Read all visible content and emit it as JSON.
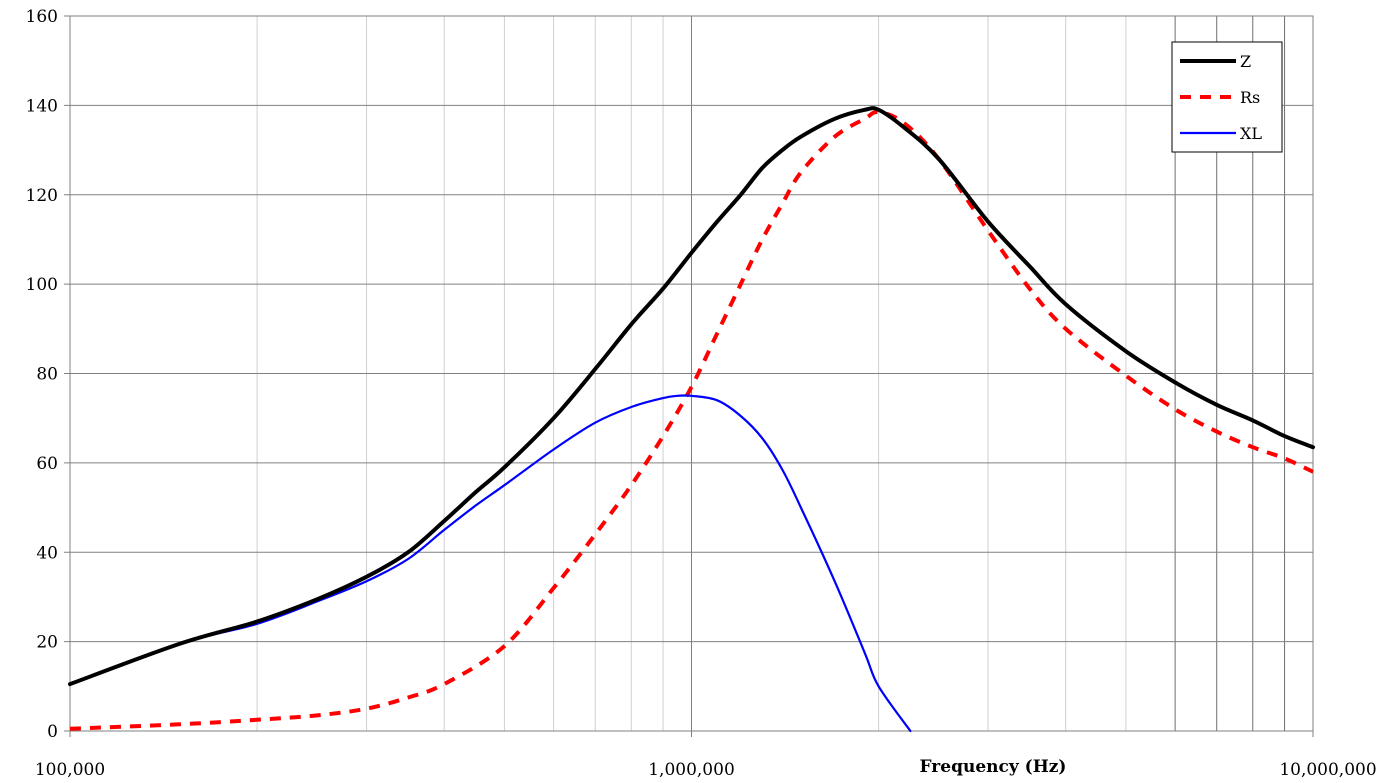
{
  "chart_data": {
    "type": "line",
    "title": "",
    "xlabel": "Frequency (Hz)",
    "ylabel": "",
    "x_scale": "log",
    "xlim": [
      100000,
      10000000
    ],
    "ylim": [
      0,
      160
    ],
    "grid": true,
    "legend_position": "top-right",
    "x_tick_labels": [
      "100,000",
      "1,000,000",
      "10,000,000"
    ],
    "x_ticks": [
      100000,
      1000000,
      10000000
    ],
    "y_tick_labels": [
      "0",
      "20",
      "40",
      "60",
      "80",
      "100",
      "120",
      "140",
      "160"
    ],
    "y_ticks": [
      0,
      20,
      40,
      60,
      80,
      100,
      120,
      140,
      160
    ],
    "series": [
      {
        "name": "Z",
        "color": "#000000",
        "style": "solid",
        "x": [
          100000,
          150000,
          200000,
          250000,
          300000,
          350000,
          400000,
          450000,
          500000,
          600000,
          700000,
          800000,
          900000,
          1000000,
          1100000,
          1200000,
          1300000,
          1400000,
          1500000,
          1700000,
          1900000,
          2000000,
          2200000,
          2500000,
          3000000,
          3500000,
          4000000,
          5000000,
          6000000,
          7000000,
          8000000,
          9000000,
          10000000
        ],
        "y": [
          10.5,
          19.5,
          24.5,
          29.5,
          34.5,
          40,
          47,
          53.5,
          59,
          70,
          81,
          91,
          99,
          107,
          114,
          120,
          126,
          130,
          133,
          137,
          139,
          139,
          135,
          128,
          114,
          104,
          95.5,
          85,
          78,
          73,
          69.5,
          66,
          63.5
        ]
      },
      {
        "name": "Rs",
        "color": "#ff0000",
        "style": "dashed",
        "x": [
          100000,
          150000,
          200000,
          250000,
          300000,
          350000,
          400000,
          500000,
          600000,
          700000,
          800000,
          900000,
          1000000,
          1100000,
          1200000,
          1300000,
          1400000,
          1500000,
          1700000,
          1900000,
          2000000,
          2200000,
          2500000,
          3000000,
          3500000,
          4000000,
          5000000,
          6000000,
          7000000,
          8000000,
          9000000,
          10000000
        ],
        "y": [
          0.5,
          1.5,
          2.5,
          3.5,
          5,
          7.5,
          10.5,
          19,
          32,
          44,
          55,
          66,
          77,
          89,
          100,
          110,
          118,
          125,
          133,
          137,
          138.5,
          136,
          128,
          112,
          99,
          90,
          79.5,
          72,
          67,
          63.5,
          61,
          58
        ]
      },
      {
        "name": "XL",
        "color": "#0000ff",
        "style": "solid",
        "x": [
          100000,
          150000,
          200000,
          250000,
          300000,
          350000,
          400000,
          450000,
          500000,
          600000,
          700000,
          800000,
          900000,
          950000,
          1000000,
          1100000,
          1200000,
          1300000,
          1400000,
          1500000,
          1700000,
          1900000,
          2000000,
          2250000
        ],
        "y": [
          10.5,
          19.5,
          24,
          29,
          33.5,
          38.5,
          45,
          50.5,
          55,
          63,
          69,
          72.5,
          74.5,
          75,
          75,
          74,
          70.5,
          65.5,
          58.5,
          50,
          33.5,
          17.5,
          10,
          0
        ]
      }
    ]
  }
}
